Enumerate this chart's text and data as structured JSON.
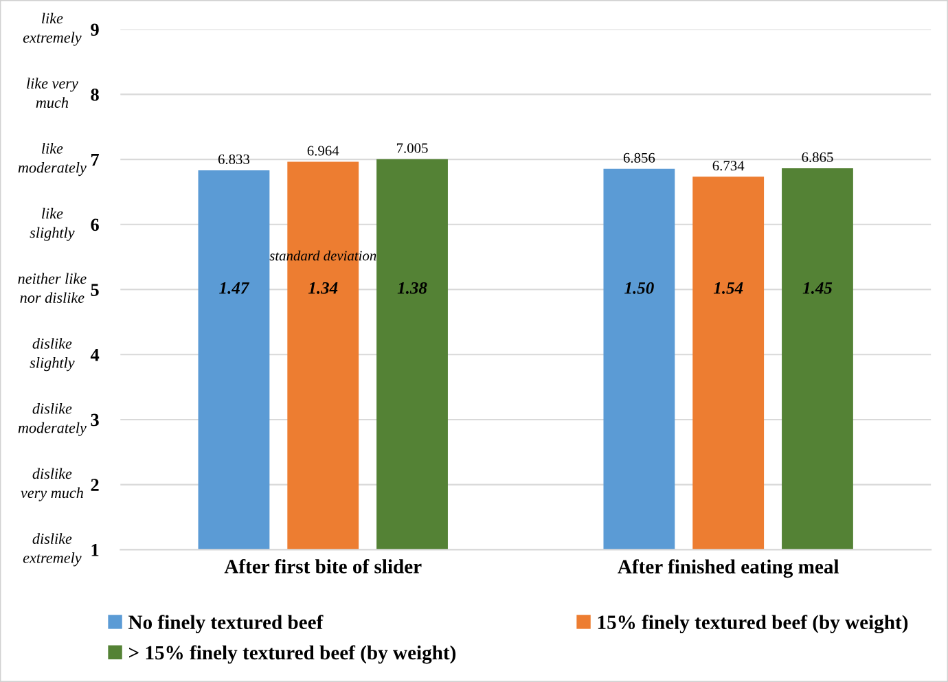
{
  "chart_data": {
    "type": "bar",
    "categories": [
      "After first bite of slider",
      "After finished eating meal"
    ],
    "series": [
      {
        "name": "No finely textured beef",
        "color": "#5b9bd5",
        "values": [
          6.833,
          6.856
        ]
      },
      {
        "name": "15% finely textured beef (by weight)",
        "color": "#ed7d31",
        "values": [
          6.964,
          6.734
        ]
      },
      {
        "name": "> 15% finely textured beef (by weight)",
        "color": "#548235",
        "values": [
          7.005,
          6.865
        ]
      }
    ],
    "ylim": [
      1,
      9
    ],
    "yticks": [
      1,
      2,
      3,
      4,
      5,
      6,
      7,
      8,
      9
    ],
    "data_labels": true,
    "grid": "y",
    "legend": "bottom",
    "annotations": [
      "like\nextremely",
      "like very\nmuch",
      "like\nmoderately",
      "like\nslightly",
      "neither like\nnor dislike",
      "dislike\nslightly",
      "dislike\nmoderately",
      "dislike\nvery much",
      "dislike\nextremely",
      "standard deviation",
      "1.47",
      "1.34",
      "1.38",
      "1.50",
      "1.54",
      "1.45"
    ]
  }
}
